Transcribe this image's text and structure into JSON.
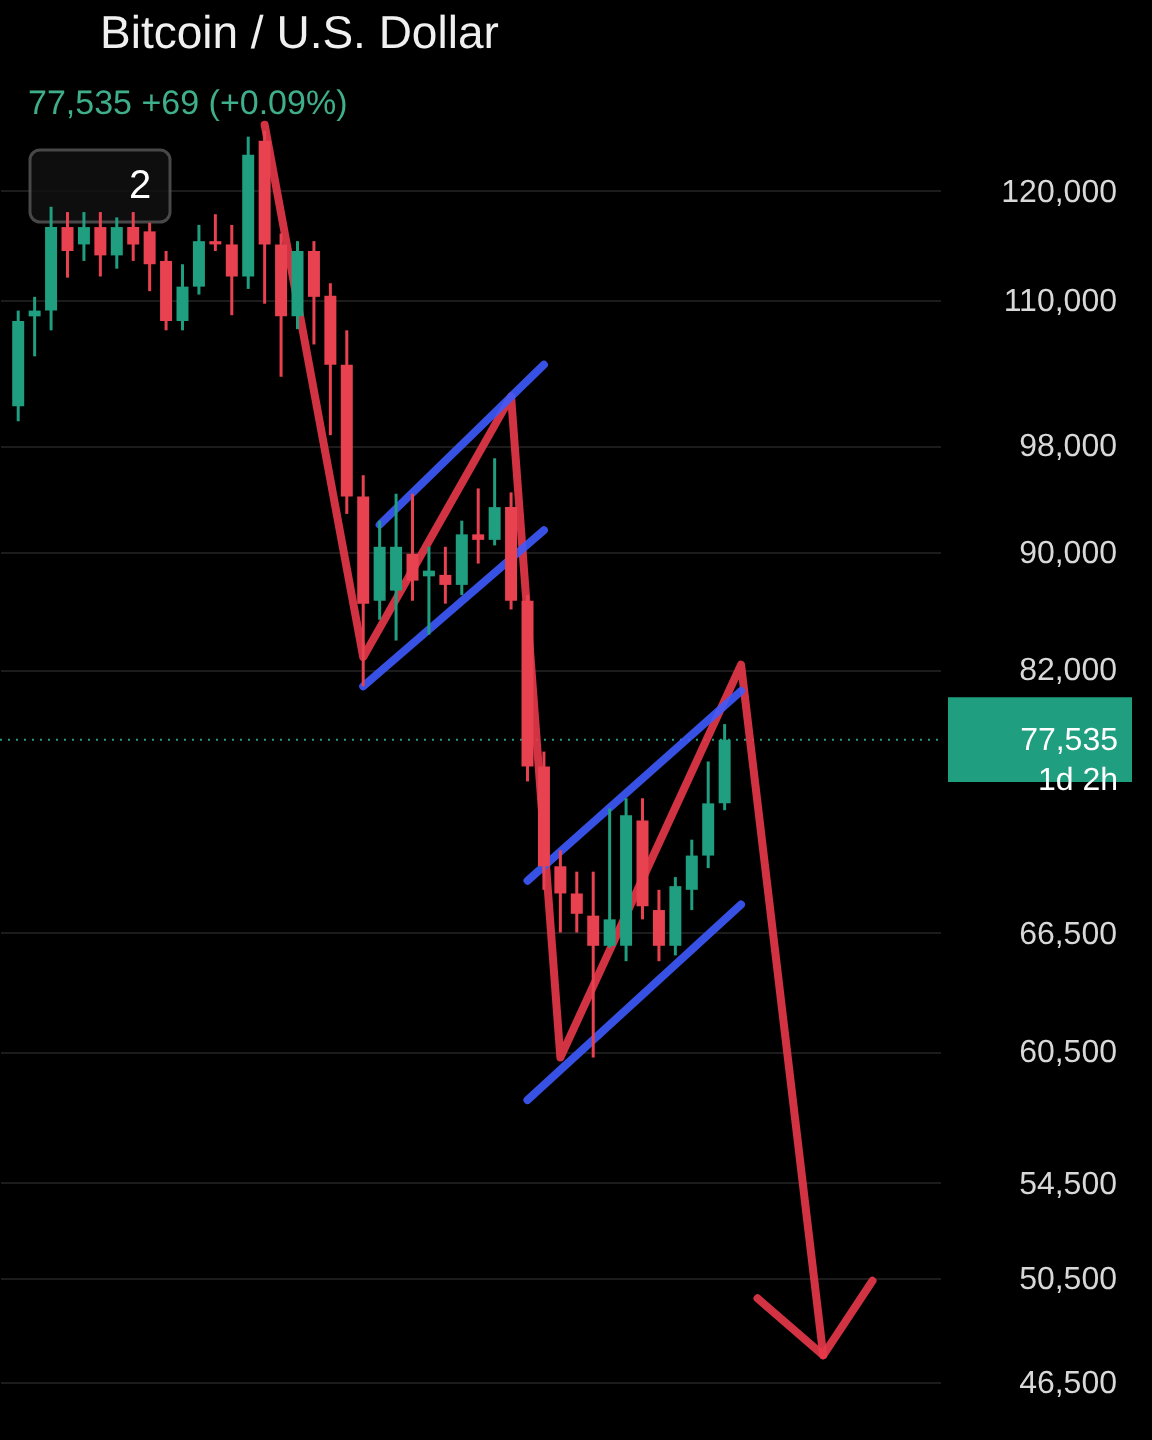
{
  "chart_data": {
    "type": "candlestick",
    "title": "Bitcoin / U.S. Dollar",
    "subtitle": "77,535 +69 (+0.09%)",
    "annotations": [
      "2"
    ],
    "categories": [
      null,
      null,
      null,
      null,
      null,
      null,
      null,
      null,
      null,
      null,
      null,
      null,
      null,
      null,
      null,
      null,
      null,
      null,
      null,
      null,
      null,
      null,
      null,
      null,
      null,
      null,
      null,
      null,
      null,
      null,
      null,
      null,
      null,
      null,
      null,
      null,
      null,
      null,
      null,
      null,
      null,
      null,
      null,
      null,
      null,
      null,
      null,
      null,
      null,
      null,
      null,
      null,
      null,
      null,
      null,
      null
    ],
    "ohlc": [
      [
        101100,
        109100,
        99900,
        108200
      ],
      [
        108600,
        110300,
        105200,
        109100
      ],
      [
        109100,
        118500,
        107400,
        116600
      ],
      [
        116600,
        118000,
        112000,
        114400
      ],
      [
        115000,
        118000,
        113500,
        116600
      ],
      [
        116600,
        118000,
        112100,
        114000
      ],
      [
        114000,
        117500,
        112800,
        116600
      ],
      [
        116600,
        118000,
        113500,
        115000
      ],
      [
        116200,
        117000,
        110800,
        113200
      ],
      [
        113500,
        114400,
        107400,
        108200
      ],
      [
        108200,
        113200,
        107400,
        111200
      ],
      [
        111200,
        116800,
        110500,
        115300
      ],
      [
        115300,
        117800,
        114400,
        115000
      ],
      [
        115000,
        116800,
        108700,
        112100
      ],
      [
        112100,
        125300,
        111000,
        123500
      ],
      [
        124900,
        125900,
        109700,
        115000
      ],
      [
        115000,
        116000,
        103500,
        108600
      ],
      [
        108600,
        115300,
        107500,
        114400
      ],
      [
        114400,
        115300,
        106200,
        110300
      ],
      [
        110400,
        111500,
        98800,
        104500
      ],
      [
        104500,
        107400,
        92800,
        94100
      ],
      [
        94100,
        95700,
        80900,
        86400
      ],
      [
        86600,
        92300,
        85300,
        90400
      ],
      [
        87300,
        94300,
        83900,
        90400
      ],
      [
        89900,
        94300,
        86600,
        88000
      ],
      [
        88300,
        90400,
        84300,
        88700
      ],
      [
        88400,
        90400,
        86400,
        87700
      ],
      [
        87700,
        92300,
        87000,
        91300
      ],
      [
        91300,
        94700,
        89200,
        90900
      ],
      [
        90900,
        97000,
        90500,
        93300
      ],
      [
        93300,
        94400,
        86000,
        86600
      ],
      [
        86600,
        87000,
        75000,
        75900
      ],
      [
        75900,
        76800,
        68800,
        70100
      ],
      [
        70100,
        71000,
        66500,
        68600
      ],
      [
        68600,
        69800,
        66500,
        67500
      ],
      [
        67400,
        69800,
        60200,
        65800
      ],
      [
        65800,
        73400,
        65700,
        67200
      ],
      [
        65800,
        74000,
        65000,
        73000
      ],
      [
        72700,
        74000,
        67200,
        67900
      ],
      [
        67700,
        68800,
        65000,
        65800
      ],
      [
        65800,
        69500,
        65300,
        69000
      ],
      [
        68800,
        71600,
        67700,
        70700
      ],
      [
        70700,
        76200,
        70000,
        73700
      ],
      [
        73700,
        78500,
        73300,
        77535
      ],
      null,
      null,
      null,
      null,
      null,
      null,
      null,
      null,
      null,
      null,
      null,
      null
    ],
    "colors": [
      "#1f9e80",
      "#1f9e80",
      "#1f9e80",
      "#e8414f",
      "#1f9e80",
      "#e8414f",
      "#1f9e80",
      "#e8414f",
      "#e8414f",
      "#e8414f",
      "#1f9e80",
      "#1f9e80",
      "#e8414f",
      "#e8414f",
      "#1f9e80",
      "#e8414f",
      "#e8414f",
      "#1f9e80",
      "#e8414f",
      "#e8414f",
      "#e8414f",
      "#e8414f",
      "#1f9e80",
      "#1f9e80",
      "#e8414f",
      "#1f9e80",
      "#e8414f",
      "#1f9e80",
      "#e8414f",
      "#1f9e80",
      "#e8414f",
      "#e8414f",
      "#e8414f",
      "#e8414f",
      "#e8414f",
      "#e8414f",
      "#1f9e80",
      "#1f9e80",
      "#e8414f",
      "#e8414f",
      "#1f9e80",
      "#1f9e80",
      "#1f9e80",
      "#1f9e80",
      null,
      null,
      null,
      null,
      null,
      null,
      null,
      null,
      null,
      null,
      null,
      null
    ],
    "series": [
      {
        "type": "line",
        "color": "#e8394a",
        "values": [
          null,
          null,
          null,
          null,
          null,
          null,
          null,
          null,
          null,
          null,
          null,
          null,
          null,
          null,
          null,
          126500,
          null,
          null,
          null,
          null,
          null,
          82800,
          null,
          null,
          null,
          null,
          null,
          null,
          null,
          null,
          101900,
          null,
          null,
          60200,
          null,
          null,
          null,
          null,
          null,
          null,
          null,
          null,
          null,
          null,
          82300,
          null,
          null,
          null,
          null,
          47500,
          null,
          null,
          null,
          null,
          null,
          null
        ]
      },
      {
        "type": "line",
        "color": "#e8394a",
        "values": [
          null,
          null,
          null,
          null,
          null,
          null,
          null,
          null,
          null,
          null,
          null,
          null,
          null,
          null,
          null,
          null,
          null,
          null,
          null,
          null,
          null,
          null,
          null,
          null,
          null,
          null,
          null,
          null,
          null,
          null,
          null,
          null,
          null,
          null,
          null,
          null,
          null,
          null,
          null,
          null,
          null,
          null,
          null,
          null,
          null,
          49700,
          null,
          null,
          null,
          47500,
          null,
          null,
          50400,
          null,
          null,
          null
        ]
      },
      {
        "type": "line",
        "color": "#3d5afe",
        "values": [
          null,
          null,
          null,
          null,
          null,
          null,
          null,
          null,
          null,
          null,
          null,
          null,
          null,
          null,
          null,
          null,
          null,
          null,
          null,
          null,
          null,
          null,
          92000,
          null,
          null,
          null,
          null,
          null,
          null,
          null,
          null,
          null,
          104500,
          null,
          null,
          null,
          null,
          null,
          null,
          null,
          null,
          null,
          null,
          null,
          null,
          null,
          null,
          null,
          null,
          null,
          null,
          null,
          null,
          null,
          null,
          null
        ]
      },
      {
        "type": "line",
        "color": "#3d5afe",
        "values": [
          null,
          null,
          null,
          null,
          null,
          null,
          null,
          null,
          null,
          null,
          null,
          null,
          null,
          null,
          null,
          null,
          null,
          null,
          null,
          null,
          null,
          80900,
          null,
          null,
          null,
          null,
          null,
          null,
          null,
          null,
          null,
          null,
          91600,
          null,
          null,
          null,
          null,
          null,
          null,
          null,
          null,
          null,
          null,
          null,
          null,
          null,
          null,
          null,
          null,
          null,
          null,
          null,
          null,
          null,
          null,
          null
        ]
      },
      {
        "type": "line",
        "color": "#3d5afe",
        "values": [
          null,
          null,
          null,
          null,
          null,
          null,
          null,
          null,
          null,
          null,
          null,
          null,
          null,
          null,
          null,
          null,
          null,
          null,
          null,
          null,
          null,
          null,
          null,
          null,
          null,
          null,
          null,
          null,
          null,
          null,
          null,
          69300,
          null,
          null,
          null,
          null,
          null,
          null,
          null,
          null,
          null,
          null,
          null,
          null,
          80600,
          null,
          null,
          null,
          null,
          null,
          null,
          null,
          null,
          null,
          null,
          null
        ]
      },
      {
        "type": "line",
        "color": "#3d5afe",
        "values": [
          null,
          null,
          null,
          null,
          null,
          null,
          null,
          null,
          null,
          null,
          null,
          null,
          null,
          null,
          null,
          null,
          null,
          null,
          null,
          null,
          null,
          null,
          null,
          null,
          null,
          null,
          null,
          null,
          null,
          null,
          null,
          58200,
          null,
          null,
          null,
          null,
          null,
          null,
          null,
          null,
          null,
          null,
          null,
          null,
          68000,
          null,
          null,
          null,
          null,
          null,
          null,
          null,
          null,
          null,
          null,
          null
        ]
      }
    ],
    "ref_lines": [
      {
        "axis": "y",
        "value": 77535,
        "label": "77,535\n1d 2h",
        "color": "#1f9e80",
        "line_style": "dotted"
      }
    ],
    "ylim": [
      44400,
      139700
    ],
    "log": true,
    "yticks": [
      {
        "value": 46500,
        "label": "46,500"
      },
      {
        "value": 50500,
        "label": "50,500"
      },
      {
        "value": 54500,
        "label": "54,500"
      },
      {
        "value": 60500,
        "label": "60,500"
      },
      {
        "value": 66500,
        "label": "66,500"
      },
      {
        "value": 82000,
        "label": "82,000"
      },
      {
        "value": 90000,
        "label": "90,000"
      },
      {
        "value": 98000,
        "label": "98,000"
      },
      {
        "value": 110000,
        "label": "110,000"
      },
      {
        "value": 120000,
        "label": "120,000"
      }
    ],
    "tick_labels": "y",
    "grid": "y"
  }
}
